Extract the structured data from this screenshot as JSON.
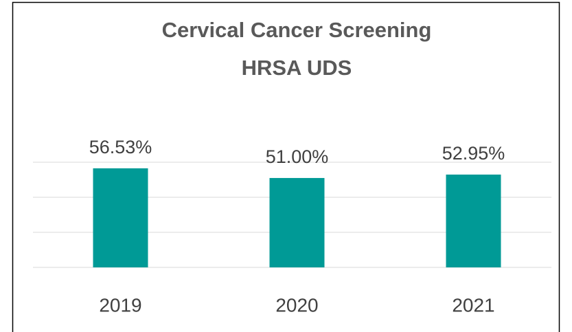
{
  "chart_data": {
    "type": "bar",
    "title": [
      "Cervical Cancer Screening",
      "HRSA UDS"
    ],
    "categories": [
      "2019",
      "2020",
      "2021"
    ],
    "values": [
      56.53,
      51.0,
      52.95
    ],
    "value_labels": [
      "56.53%",
      "51.00%",
      "52.95%"
    ],
    "color": "#009a96",
    "ylim": [
      0,
      60
    ],
    "yticks": [
      0,
      20,
      40,
      60
    ],
    "grid": true
  }
}
